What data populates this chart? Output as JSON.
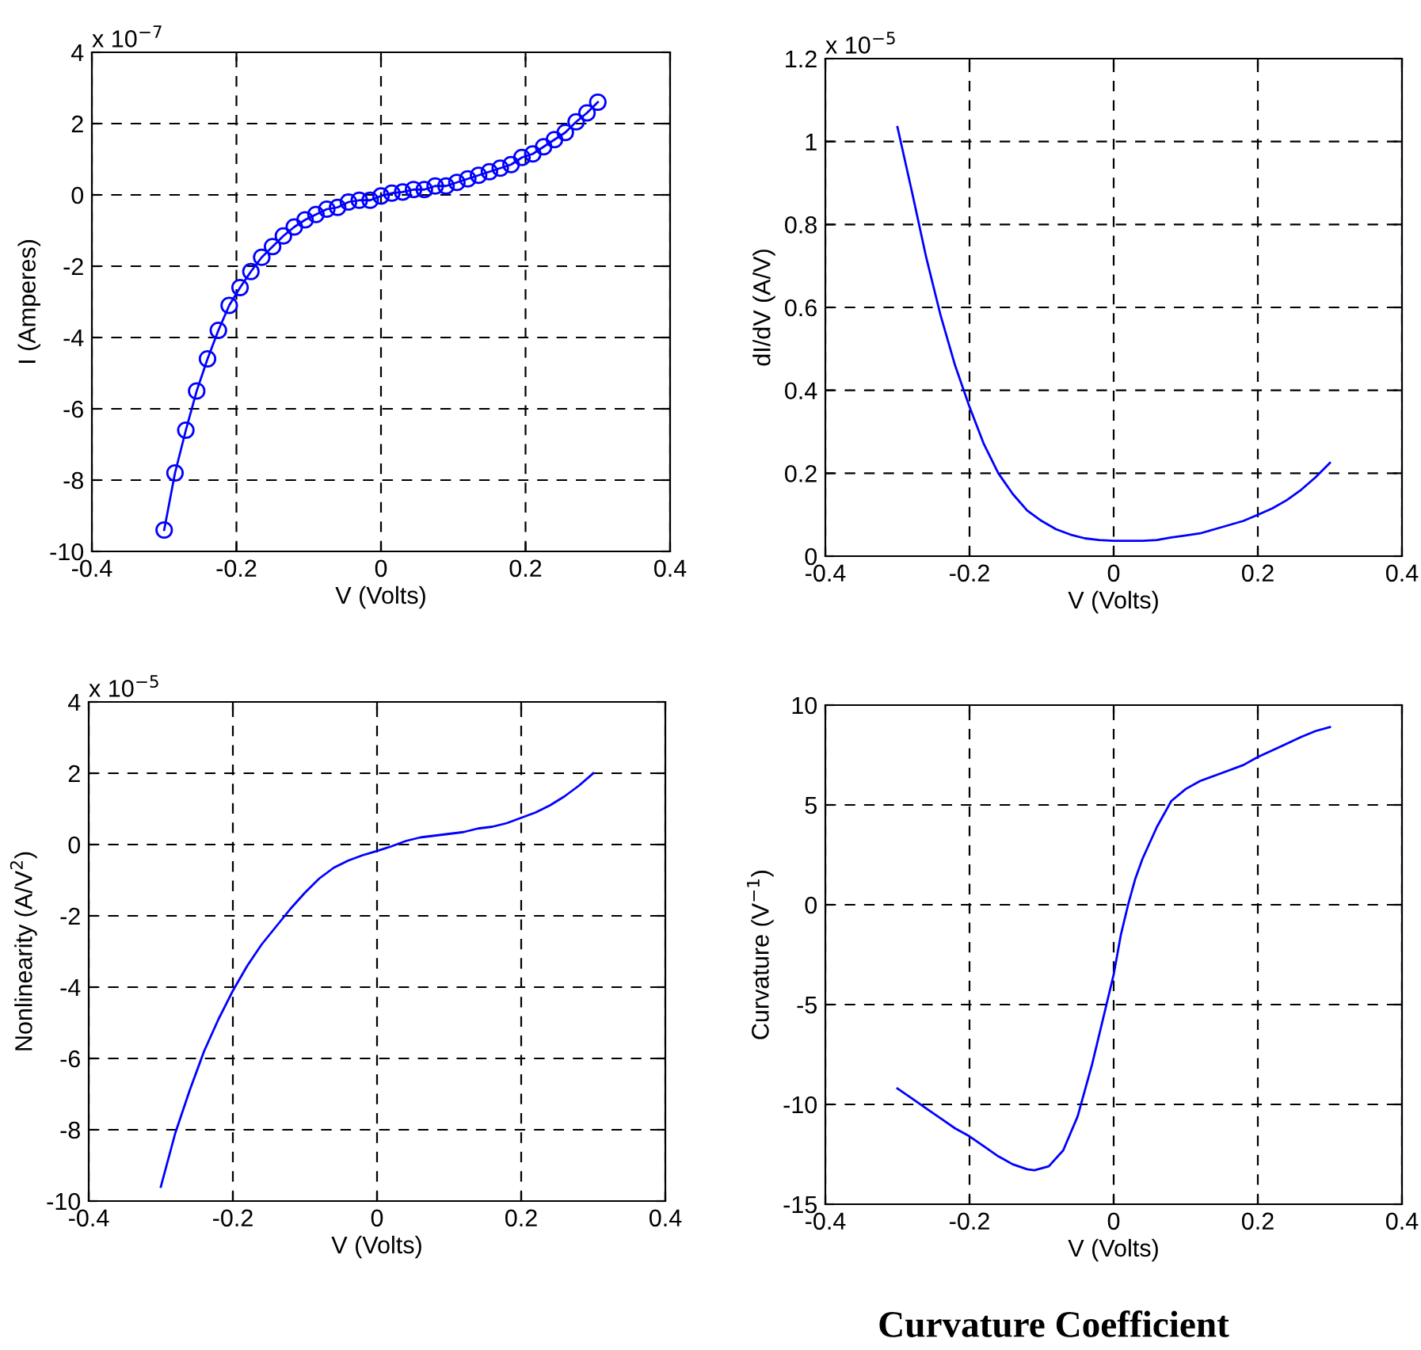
{
  "chart_data": [
    {
      "type": "line",
      "xlabel": "V (Volts)",
      "ylabel": "I (Amperes)",
      "annotations": [
        "x 10$^{−7}$"
      ],
      "xlim": [
        -0.4,
        0.4
      ],
      "xticks": [
        -0.4,
        -0.2,
        0,
        0.2,
        0.4
      ],
      "ylim": [
        -10,
        4
      ],
      "yticks": [
        -10,
        -8,
        -6,
        -4,
        -2,
        0,
        2,
        4
      ],
      "grid": true,
      "marker": "circle",
      "line_style": "solid",
      "x": [
        -0.3,
        -0.285,
        -0.27,
        -0.255,
        -0.24,
        -0.225,
        -0.21,
        -0.195,
        -0.18,
        -0.165,
        -0.15,
        -0.135,
        -0.12,
        -0.105,
        -0.09,
        -0.075,
        -0.06,
        -0.045,
        -0.03,
        -0.015,
        0,
        0.015,
        0.03,
        0.045,
        0.06,
        0.075,
        0.09,
        0.105,
        0.12,
        0.135,
        0.15,
        0.165,
        0.18,
        0.195,
        0.21,
        0.225,
        0.24,
        0.255,
        0.27,
        0.285,
        0.3
      ],
      "series": [
        {
          "color": "#0000ff",
          "values": [
            -9.4,
            -7.8,
            -6.6,
            -5.5,
            -4.6,
            -3.8,
            -3.1,
            -2.6,
            -2.15,
            -1.75,
            -1.45,
            -1.15,
            -0.9,
            -0.7,
            -0.55,
            -0.4,
            -0.35,
            -0.2,
            -0.15,
            -0.15,
            -0.03,
            0.05,
            0.08,
            0.15,
            0.15,
            0.25,
            0.25,
            0.35,
            0.45,
            0.55,
            0.65,
            0.75,
            0.85,
            1.05,
            1.15,
            1.35,
            1.55,
            1.75,
            2.05,
            2.3,
            2.6
          ]
        }
      ]
    },
    {
      "type": "line",
      "xlabel": "V (Volts)",
      "ylabel": "dI/dV (A/V)",
      "annotations": [
        "x 10$^{−5}$"
      ],
      "xlim": [
        -0.4,
        0.4
      ],
      "xticks": [
        -0.4,
        -0.2,
        0,
        0.2,
        0.4
      ],
      "ylim": [
        0,
        1.2
      ],
      "yticks": [
        0,
        0.2,
        0.4,
        0.6,
        0.8,
        1,
        1.2
      ],
      "grid": true,
      "line_style": "solid",
      "x": [
        -0.3,
        -0.28,
        -0.26,
        -0.24,
        -0.22,
        -0.2,
        -0.18,
        -0.16,
        -0.14,
        -0.12,
        -0.1,
        -0.08,
        -0.06,
        -0.04,
        -0.02,
        0,
        0.02,
        0.04,
        0.06,
        0.08,
        0.1,
        0.12,
        0.14,
        0.16,
        0.18,
        0.2,
        0.22,
        0.24,
        0.26,
        0.28,
        0.3
      ],
      "series": [
        {
          "color": "#0000ff",
          "values": [
            1.035,
            0.88,
            0.72,
            0.58,
            0.46,
            0.36,
            0.27,
            0.2,
            0.15,
            0.11,
            0.085,
            0.065,
            0.052,
            0.043,
            0.039,
            0.037,
            0.037,
            0.037,
            0.039,
            0.045,
            0.05,
            0.055,
            0.065,
            0.075,
            0.085,
            0.1,
            0.115,
            0.135,
            0.16,
            0.19,
            0.225
          ]
        }
      ]
    },
    {
      "type": "line",
      "xlabel": "V (Volts)",
      "ylabel": "Nonlinearity (A/V$^{2}$)",
      "annotations": [
        "x 10$^{−5}$"
      ],
      "xlim": [
        -0.4,
        0.4
      ],
      "xticks": [
        -0.4,
        -0.2,
        0,
        0.2,
        0.4
      ],
      "ylim": [
        -10,
        4
      ],
      "yticks": [
        -10,
        -8,
        -6,
        -4,
        -2,
        0,
        2,
        4
      ],
      "grid": true,
      "line_style": "solid",
      "x": [
        -0.3,
        -0.28,
        -0.26,
        -0.24,
        -0.22,
        -0.2,
        -0.18,
        -0.16,
        -0.14,
        -0.12,
        -0.1,
        -0.08,
        -0.06,
        -0.04,
        -0.02,
        0,
        0.02,
        0.04,
        0.06,
        0.08,
        0.1,
        0.12,
        0.14,
        0.16,
        0.18,
        0.2,
        0.22,
        0.24,
        0.26,
        0.28,
        0.3
      ],
      "series": [
        {
          "color": "#0000ff",
          "values": [
            -9.6,
            -8.1,
            -6.9,
            -5.8,
            -4.9,
            -4.1,
            -3.4,
            -2.8,
            -2.3,
            -1.8,
            -1.35,
            -0.95,
            -0.65,
            -0.45,
            -0.3,
            -0.18,
            -0.05,
            0.1,
            0.2,
            0.25,
            0.3,
            0.35,
            0.45,
            0.5,
            0.6,
            0.75,
            0.9,
            1.1,
            1.35,
            1.65,
            2.0
          ]
        }
      ]
    },
    {
      "type": "line",
      "xlabel": "V (Volts)",
      "ylabel": "Curvature (V$^{−1}$)",
      "xlim": [
        -0.4,
        0.4
      ],
      "xticks": [
        -0.4,
        -0.2,
        0,
        0.2,
        0.4
      ],
      "ylim": [
        -15,
        10
      ],
      "yticks": [
        -15,
        -10,
        -5,
        0,
        5,
        10
      ],
      "grid": true,
      "line_style": "solid",
      "x": [
        -0.3,
        -0.28,
        -0.26,
        -0.24,
        -0.22,
        -0.2,
        -0.18,
        -0.16,
        -0.14,
        -0.12,
        -0.11,
        -0.09,
        -0.07,
        -0.05,
        -0.03,
        -0.01,
        0,
        0.01,
        0.02,
        0.03,
        0.04,
        0.06,
        0.08,
        0.1,
        0.12,
        0.15,
        0.18,
        0.2,
        0.23,
        0.26,
        0.28,
        0.3
      ],
      "series": [
        {
          "color": "#0000ff",
          "values": [
            -9.2,
            -9.7,
            -10.2,
            -10.7,
            -11.2,
            -11.6,
            -12.1,
            -12.6,
            -13.0,
            -13.25,
            -13.3,
            -13.1,
            -12.3,
            -10.6,
            -8.0,
            -5.0,
            -3.5,
            -1.5,
            0,
            1.3,
            2.3,
            3.9,
            5.2,
            5.8,
            6.2,
            6.6,
            7.0,
            7.4,
            7.9,
            8.4,
            8.7,
            8.9
          ]
        }
      ]
    },
    {
      "type": "other",
      "title": "Curvature Coefficient"
    }
  ]
}
